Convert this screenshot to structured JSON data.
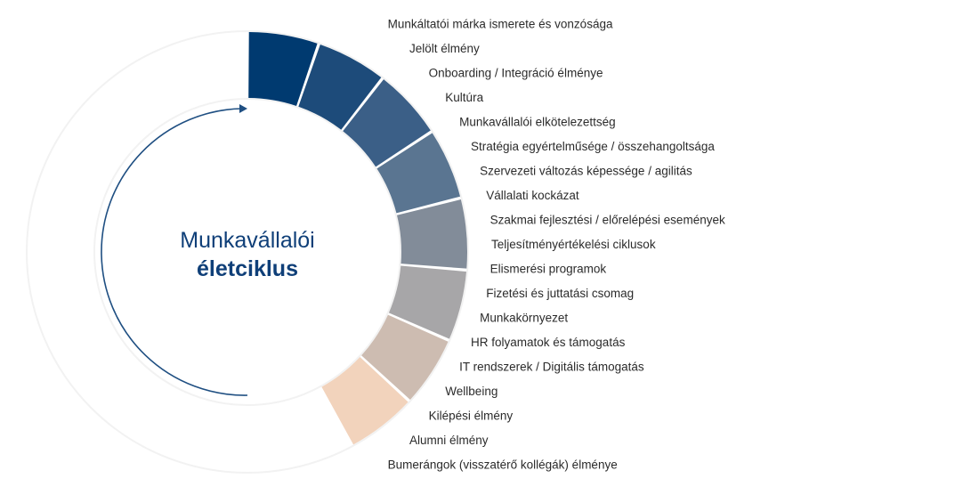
{
  "center": {
    "line1": "Munkavállalói",
    "line2": "életciklus"
  },
  "colors": {
    "cycle_arrow": "#1f4f82",
    "background_ring": "#ffffff",
    "text": "#2b2b2b",
    "center_text": "#0f3f78"
  },
  "segments": [
    {
      "label": "Munkáltatói márka ismerete és vonzósága",
      "color": "#003a70",
      "shown": true
    },
    {
      "label": "Jelölt élmény",
      "color": "#1d4b7a",
      "shown": true
    },
    {
      "label": "Onboarding / Integráció élménye",
      "color": "#3b5f87",
      "shown": true
    },
    {
      "label": "Kultúra",
      "color": "#5a7591",
      "shown": true
    },
    {
      "label": "Munkavállalói elkötelezettség",
      "color": "#828c99",
      "shown": true
    },
    {
      "label": "Stratégia egyértelműsége / összehangoltsága",
      "color": "#a7a6a8",
      "shown": true
    },
    {
      "label": "Szervezeti változás képessége / agilitás",
      "color": "#cdbcb1",
      "shown": true
    },
    {
      "label": "Vállalati kockázat",
      "color": "#f2d3bc",
      "shown": true
    },
    {
      "label": "Szakmai fejlesztési / előrelépési események",
      "color": "#ffffff",
      "shown": false
    },
    {
      "label": "Teljesítményértékelési ciklusok",
      "color": "#ffffff",
      "shown": false
    },
    {
      "label": "Elismerési programok",
      "color": "#ffffff",
      "shown": false
    },
    {
      "label": "Fizetési és juttatási csomag",
      "color": "#ffffff",
      "shown": false
    },
    {
      "label": "Munkakörnyezet",
      "color": "#ffffff",
      "shown": false
    },
    {
      "label": "HR folyamatok és támogatás",
      "color": "#ffffff",
      "shown": false
    },
    {
      "label": "IT rendszerek / Digitális támogatás",
      "color": "#ffffff",
      "shown": false
    },
    {
      "label": "Wellbeing",
      "color": "#ffffff",
      "shown": false
    },
    {
      "label": "Kilépési élmény",
      "color": "#ffffff",
      "shown": false
    },
    {
      "label": "Alumni élmény",
      "color": "#ffffff",
      "shown": false
    },
    {
      "label": "Bumerángok (visszatérő kollégák) élménye",
      "color": "#ffffff",
      "shown": false
    }
  ]
}
